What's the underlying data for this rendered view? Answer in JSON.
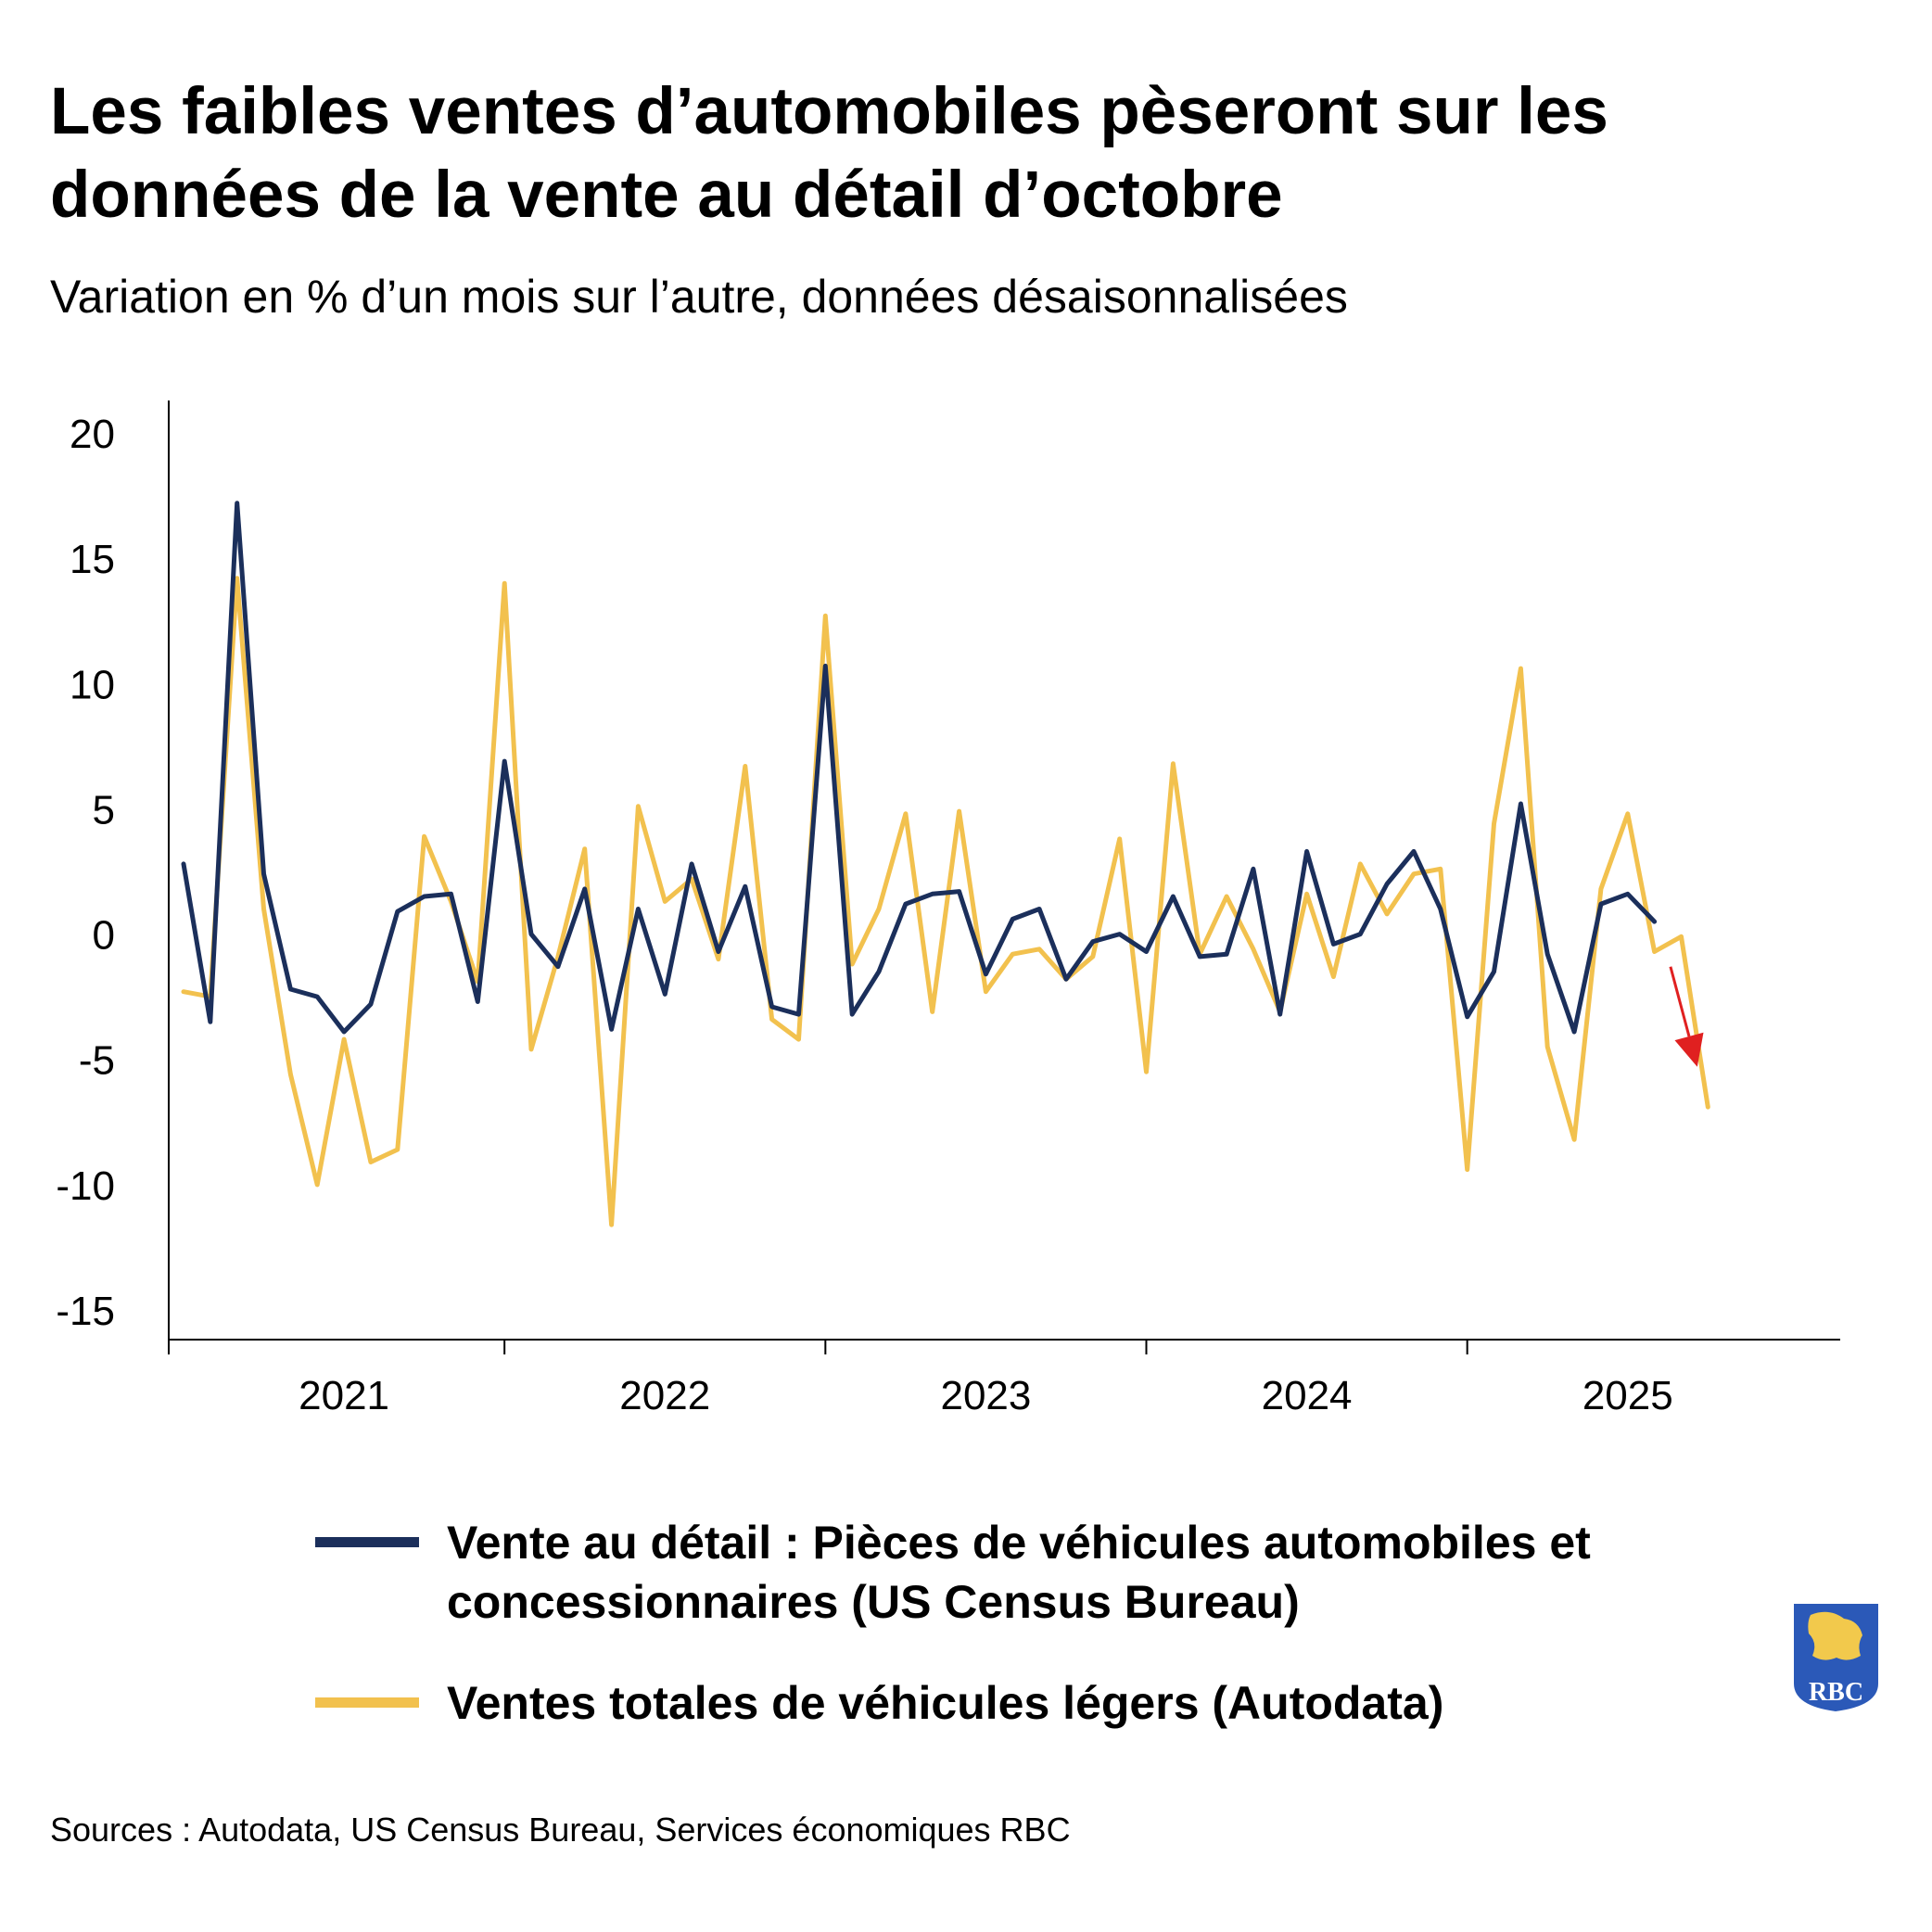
{
  "header": {
    "title": "Les faibles ventes d’automobiles pèseront sur les données de la vente au détail d’octobre",
    "subtitle": "Variation en % d’un mois sur l’autre, données désaisonnalisées"
  },
  "colors": {
    "retail": "#1b2f5b",
    "autodata": "#f2c14e",
    "arrow": "#e02020",
    "logo_blue": "#2b59b8",
    "logo_gold": "#f2c94c"
  },
  "chart_data": {
    "type": "line",
    "title": "Les faibles ventes d’automobiles pèseront sur les données de la vente au détail d’octobre",
    "subtitle": "Variation en % d’un mois sur l’autre, données désaisonnalisées",
    "xlabel": "",
    "ylabel": "",
    "ylim": [
      -15,
      20
    ],
    "yticks": [
      20,
      15,
      10,
      5,
      0,
      -5,
      -10,
      -15
    ],
    "ytick_labels": [
      "20",
      "15",
      "10",
      "5",
      "0",
      "-5",
      "-10",
      "-15"
    ],
    "xrange_months": [
      0,
      59
    ],
    "x_boundaries_months": [
      0,
      12,
      24,
      36,
      48
    ],
    "year_labels": [
      {
        "label": "2021",
        "month": 6
      },
      {
        "label": "2022",
        "month": 18
      },
      {
        "label": "2023",
        "month": 30
      },
      {
        "label": "2024",
        "month": 42
      },
      {
        "label": "2025",
        "month": 54
      }
    ],
    "x_start": "2021-01",
    "series": [
      {
        "name": "Vente au détail : Pièces de véhicules automobiles et concessionnaires (US Census Bureau)",
        "values": [
          2.8,
          -3.5,
          17.2,
          2.4,
          -2.2,
          -2.5,
          -3.9,
          -2.8,
          0.9,
          1.5,
          1.6,
          -2.7,
          6.9,
          0.0,
          -1.3,
          1.8,
          -3.8,
          1.0,
          -2.4,
          2.8,
          -0.7,
          1.9,
          -2.9,
          -3.2,
          10.7,
          -3.2,
          -1.5,
          1.2,
          1.6,
          1.7,
          -1.6,
          0.6,
          1.0,
          -1.8,
          -0.3,
          0.0,
          -0.7,
          1.5,
          -0.9,
          -0.8,
          2.6,
          -3.2,
          3.3,
          -0.4,
          0.0,
          2.0,
          3.3,
          1.0,
          -3.3,
          -1.5,
          5.2,
          -0.8,
          -3.9,
          1.2,
          1.6,
          0.5
        ]
      },
      {
        "name": "Ventes totales de véhicules légers (Autodata)",
        "values": [
          -2.3,
          -2.5,
          14.2,
          1.0,
          -5.6,
          -10.0,
          -4.2,
          -9.1,
          -8.6,
          3.9,
          1.3,
          -1.9,
          14.0,
          -4.6,
          -0.9,
          3.4,
          -11.6,
          5.1,
          1.3,
          2.2,
          -1.0,
          6.7,
          -3.4,
          -4.2,
          12.7,
          -1.2,
          1.0,
          4.8,
          -3.1,
          4.9,
          -2.3,
          -0.8,
          -0.6,
          -1.8,
          -0.9,
          3.8,
          -5.5,
          6.8,
          -0.8,
          1.5,
          -0.6,
          -3.1,
          1.6,
          -1.7,
          2.8,
          0.8,
          2.4,
          2.6,
          -9.4,
          4.4,
          10.6,
          -4.5,
          -8.2,
          1.8,
          4.8,
          -0.7,
          -0.1,
          -6.9
        ]
      }
    ],
    "annotations": [
      {
        "type": "arrow",
        "color": "#e02020",
        "direction": "down",
        "from": {
          "month": 55.6,
          "value": -1.3
        },
        "to": {
          "month": 56.6,
          "value": -5.3
        }
      }
    ]
  },
  "legend": {
    "items": [
      {
        "label": "Vente au détail : Pièces de véhicules automobiles et concessionnaires (US Census Bureau)"
      },
      {
        "label": "Ventes totales de véhicules légers (Autodata)"
      }
    ]
  },
  "footer": {
    "source": "Sources : Autodata, US Census Bureau, Services économiques RBC"
  },
  "logo": {
    "text": "RBC"
  }
}
